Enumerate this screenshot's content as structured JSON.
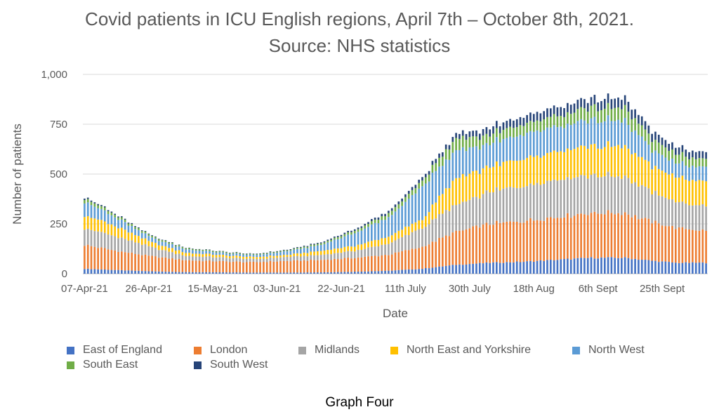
{
  "chart_data": {
    "type": "bar",
    "stacked": true,
    "title": "Covid patients in ICU English regions, April 7th – October 8th, 2021.",
    "subtitle": "Source: NHS statistics",
    "xlabel": "Date",
    "ylabel": "Number of patients",
    "ylim": [
      0,
      1000
    ],
    "y_ticks": [
      "0",
      "250",
      "500",
      "750",
      "1,000"
    ],
    "y_tick_values": [
      0,
      250,
      500,
      750,
      1000
    ],
    "x_tick_labels": [
      "07-Apr-21",
      "26-Apr-21",
      "15-May-21",
      "03-Jun-21",
      "22-Jun-21",
      "11th July",
      "30th July",
      "18th Aug",
      "6th Sept",
      "25th Sept"
    ],
    "x_tick_day_index": [
      0,
      19,
      38,
      57,
      76,
      95,
      114,
      133,
      152,
      171
    ],
    "grid": true,
    "legend_position": "bottom",
    "day_count": 185,
    "sample_days": [
      0,
      10,
      20,
      30,
      40,
      50,
      60,
      70,
      80,
      90,
      100,
      110,
      120,
      130,
      140,
      150,
      160,
      168,
      175,
      184
    ],
    "series": [
      {
        "name": "East of England",
        "color": "#4472C4",
        "values": [
          25,
          18,
          12,
          8,
          7,
          6,
          6,
          7,
          10,
          15,
          25,
          45,
          55,
          60,
          70,
          80,
          80,
          65,
          55,
          55
        ]
      },
      {
        "name": "London",
        "color": "#ED7D31",
        "values": [
          120,
          95,
          75,
          60,
          55,
          52,
          58,
          62,
          70,
          80,
          110,
          165,
          195,
          205,
          215,
          225,
          225,
          195,
          175,
          160
        ]
      },
      {
        "name": "Midlands",
        "color": "#A5A5A5",
        "values": [
          85,
          70,
          45,
          22,
          20,
          15,
          20,
          25,
          35,
          55,
          95,
          135,
          160,
          180,
          190,
          190,
          180,
          150,
          130,
          120
        ]
      },
      {
        "name": "North East and Yorkshire",
        "color": "#FFC000",
        "values": [
          65,
          50,
          25,
          15,
          12,
          10,
          10,
          20,
          25,
          35,
          45,
          135,
          125,
          135,
          140,
          145,
          155,
          130,
          125,
          125
        ]
      },
      {
        "name": "North West",
        "color": "#5B9BD5",
        "values": [
          70,
          42,
          22,
          18,
          12,
          10,
          18,
          30,
          65,
          95,
          165,
          135,
          115,
          125,
          125,
          130,
          130,
          80,
          70,
          70
        ]
      },
      {
        "name": "South East",
        "color": "#70AD47",
        "values": [
          18,
          12,
          8,
          6,
          5,
          4,
          5,
          8,
          12,
          20,
          28,
          60,
          45,
          50,
          55,
          60,
          65,
          55,
          45,
          40
        ]
      },
      {
        "name": "South West",
        "color": "#264478",
        "values": [
          7,
          5,
          3,
          2,
          2,
          2,
          3,
          5,
          8,
          12,
          17,
          25,
          35,
          40,
          45,
          45,
          50,
          40,
          35,
          35
        ]
      }
    ]
  },
  "caption": "Graph Four"
}
